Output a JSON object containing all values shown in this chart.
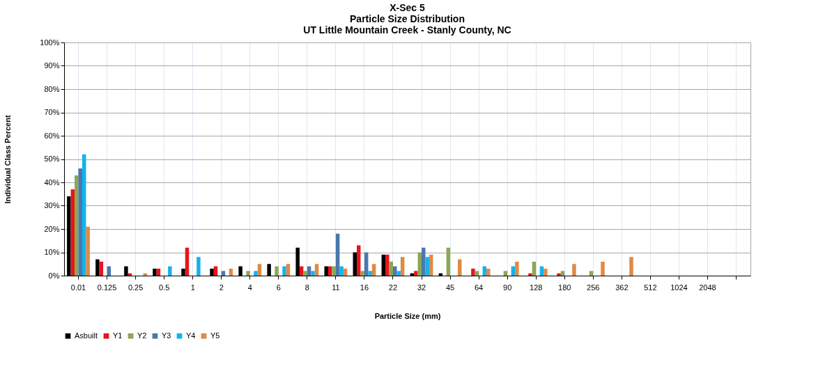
{
  "chart_data": {
    "type": "bar",
    "title": [
      "X-Sec 5",
      "Particle Size Distribution",
      "UT Little Mountain Creek - Stanly County, NC"
    ],
    "xlabel": "Particle Size (mm)",
    "ylabel": "Individual Class Percent",
    "categories": [
      "0.01",
      "0.125",
      "0.25",
      "0.5",
      "1",
      "2",
      "4",
      "6",
      "8",
      "11",
      "16",
      "22",
      "32",
      "45",
      "64",
      "90",
      "128",
      "180",
      "256",
      "362",
      "512",
      "1024",
      "2048",
      null
    ],
    "series": [
      {
        "name": "Asbuilt",
        "color": "#000000",
        "values": [
          34,
          7,
          4,
          3,
          3,
          3,
          4,
          5,
          12,
          4,
          10,
          9,
          1,
          1,
          0,
          0,
          0,
          0,
          0,
          0,
          0,
          0,
          0,
          0
        ]
      },
      {
        "name": "Y1",
        "color": "#e8141b",
        "values": [
          37,
          6,
          1,
          3,
          12,
          4,
          0,
          0,
          4,
          4,
          13,
          9,
          2,
          0,
          3,
          0,
          1,
          1,
          0,
          0,
          0,
          0,
          0,
          0
        ]
      },
      {
        "name": "Y2",
        "color": "#8ba752",
        "values": [
          43,
          0,
          0,
          0,
          0,
          0,
          2,
          4,
          2,
          4,
          2,
          6,
          10,
          12,
          2,
          2,
          6,
          2,
          2,
          0,
          0,
          0,
          0,
          0
        ]
      },
      {
        "name": "Y3",
        "color": "#4a78ac",
        "values": [
          46,
          4,
          0,
          0,
          0,
          2,
          0,
          0,
          4,
          18,
          10,
          4,
          12,
          0,
          0,
          0,
          0,
          0,
          0,
          0,
          0,
          0,
          0,
          0
        ]
      },
      {
        "name": "Y4",
        "color": "#12b3ee",
        "values": [
          52,
          0,
          0,
          4,
          8,
          0,
          2,
          4,
          2,
          4,
          2,
          2,
          8,
          0,
          4,
          4,
          4,
          0,
          0,
          0,
          0,
          0,
          0,
          0
        ]
      },
      {
        "name": "Y5",
        "color": "#df8a44",
        "values": [
          21,
          0,
          1,
          0,
          0,
          3,
          5,
          5,
          5,
          3,
          5,
          8,
          9,
          7,
          3,
          6,
          3,
          5,
          6,
          8,
          0,
          0,
          0,
          0
        ]
      }
    ],
    "ylim": [
      0,
      100
    ],
    "yticks": [
      {
        "value": 0,
        "label": "0%"
      },
      {
        "value": 10,
        "label": "10%"
      },
      {
        "value": 20,
        "label": "20%"
      },
      {
        "value": 30,
        "label": "30%"
      },
      {
        "value": 40,
        "label": "40%"
      },
      {
        "value": 50,
        "label": "50%"
      },
      {
        "value": 60,
        "label": "60%"
      },
      {
        "value": 70,
        "label": "70%"
      },
      {
        "value": 80,
        "label": "80%"
      },
      {
        "value": 90,
        "label": "90%"
      },
      {
        "value": 100,
        "label": "100%"
      }
    ],
    "grid": true,
    "legend": "bottom"
  }
}
